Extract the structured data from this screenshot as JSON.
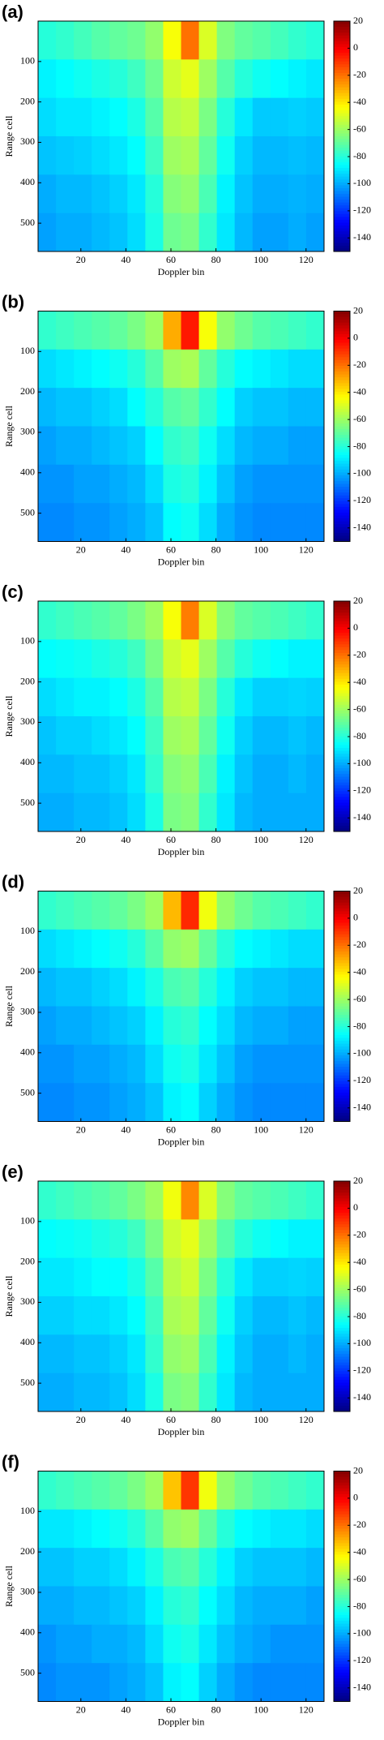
{
  "chart_data": [
    {
      "type": "heatmap",
      "panel_label": "(a)",
      "x_label": "Doppler bin",
      "y_label": "Range cell",
      "colormap": "jet",
      "y_reversed": true,
      "xlim": [
        1,
        128
      ],
      "ylim": [
        0,
        570
      ],
      "xticks": [
        20,
        40,
        60,
        80,
        100,
        120
      ],
      "yticks": [
        100,
        200,
        300,
        400,
        500
      ],
      "clim": [
        -150,
        20
      ],
      "cticks": [
        20,
        0,
        -20,
        -40,
        -60,
        -80,
        -100,
        -120,
        -140
      ],
      "values": [
        [
          -80,
          -78,
          -75,
          -72,
          -70,
          -68,
          -62,
          -45,
          -20,
          -50,
          -65,
          -70,
          -72,
          -75,
          -78,
          -80
        ],
        [
          -88,
          -86,
          -84,
          -82,
          -80,
          -76,
          -68,
          -52,
          -48,
          -60,
          -72,
          -80,
          -84,
          -86,
          -88,
          -90
        ],
        [
          -92,
          -90,
          -90,
          -88,
          -86,
          -82,
          -72,
          -56,
          -54,
          -66,
          -80,
          -90,
          -95,
          -95,
          -94,
          -95
        ],
        [
          -96,
          -95,
          -94,
          -92,
          -90,
          -86,
          -76,
          -60,
          -58,
          -70,
          -84,
          -94,
          -98,
          -98,
          -97,
          -98
        ],
        [
          -100,
          -98,
          -98,
          -96,
          -94,
          -90,
          -80,
          -64,
          -62,
          -74,
          -88,
          -96,
          -100,
          -100,
          -99,
          -100
        ],
        [
          -102,
          -100,
          -100,
          -98,
          -96,
          -92,
          -82,
          -68,
          -66,
          -78,
          -90,
          -98,
          -102,
          -102,
          -100,
          -102
        ]
      ]
    },
    {
      "type": "heatmap",
      "panel_label": "(b)",
      "x_label": "Doppler bin",
      "y_label": "Range cell",
      "colormap": "jet",
      "y_reversed": true,
      "xlim": [
        1,
        128
      ],
      "ylim": [
        0,
        570
      ],
      "xticks": [
        20,
        40,
        60,
        80,
        100,
        120
      ],
      "yticks": [
        100,
        200,
        300,
        400,
        500
      ],
      "clim": [
        -150,
        20
      ],
      "cticks": [
        20,
        0,
        -20,
        -40,
        -60,
        -80,
        -100,
        -120,
        -140
      ],
      "values": [
        [
          -78,
          -76,
          -74,
          -72,
          -70,
          -66,
          -60,
          -30,
          -5,
          -45,
          -62,
          -68,
          -72,
          -74,
          -76,
          -78
        ],
        [
          -92,
          -90,
          -88,
          -86,
          -84,
          -80,
          -72,
          -60,
          -58,
          -70,
          -80,
          -86,
          -88,
          -90,
          -92,
          -92
        ],
        [
          -98,
          -96,
          -96,
          -94,
          -92,
          -86,
          -80,
          -72,
          -70,
          -78,
          -86,
          -94,
          -96,
          -96,
          -98,
          -98
        ],
        [
          -102,
          -100,
          -100,
          -98,
          -96,
          -94,
          -86,
          -78,
          -76,
          -84,
          -92,
          -98,
          -100,
          -100,
          -102,
          -102
        ],
        [
          -104,
          -104,
          -102,
          -102,
          -100,
          -98,
          -92,
          -82,
          -80,
          -88,
          -96,
          -102,
          -104,
          -104,
          -104,
          -104
        ],
        [
          -106,
          -106,
          -104,
          -104,
          -102,
          -100,
          -96,
          -86,
          -84,
          -92,
          -100,
          -104,
          -106,
          -106,
          -106,
          -106
        ]
      ]
    },
    {
      "type": "heatmap",
      "panel_label": "(c)",
      "x_label": "Doppler bin",
      "y_label": "Range cell",
      "colormap": "jet",
      "y_reversed": true,
      "xlim": [
        1,
        128
      ],
      "ylim": [
        0,
        570
      ],
      "xticks": [
        20,
        40,
        60,
        80,
        100,
        120
      ],
      "yticks": [
        100,
        200,
        300,
        400,
        500
      ],
      "clim": [
        -150,
        20
      ],
      "cticks": [
        20,
        0,
        -20,
        -40,
        -60,
        -80,
        -100,
        -120,
        -140
      ],
      "values": [
        [
          -78,
          -76,
          -74,
          -72,
          -70,
          -66,
          -60,
          -45,
          -22,
          -50,
          -64,
          -70,
          -72,
          -74,
          -76,
          -78
        ],
        [
          -86,
          -85,
          -84,
          -82,
          -80,
          -76,
          -66,
          -52,
          -48,
          -60,
          -72,
          -80,
          -84,
          -86,
          -88,
          -88
        ],
        [
          -92,
          -90,
          -88,
          -88,
          -86,
          -82,
          -72,
          -56,
          -54,
          -66,
          -80,
          -90,
          -94,
          -94,
          -93,
          -94
        ],
        [
          -96,
          -94,
          -94,
          -92,
          -90,
          -86,
          -76,
          -60,
          -58,
          -70,
          -84,
          -94,
          -98,
          -98,
          -96,
          -98
        ],
        [
          -98,
          -98,
          -96,
          -96,
          -94,
          -90,
          -78,
          -64,
          -62,
          -74,
          -88,
          -96,
          -100,
          -100,
          -98,
          -100
        ],
        [
          -100,
          -100,
          -98,
          -98,
          -96,
          -92,
          -82,
          -66,
          -64,
          -78,
          -90,
          -98,
          -100,
          -100,
          -100,
          -100
        ]
      ]
    },
    {
      "type": "heatmap",
      "panel_label": "(d)",
      "x_label": "Doppler bin",
      "y_label": "Range cell",
      "colormap": "jet",
      "y_reversed": true,
      "xlim": [
        1,
        128
      ],
      "ylim": [
        0,
        570
      ],
      "xticks": [
        20,
        40,
        60,
        80,
        100,
        120
      ],
      "yticks": [
        100,
        200,
        300,
        400,
        500
      ],
      "clim": [
        -150,
        20
      ],
      "cticks": [
        20,
        0,
        -20,
        -40,
        -60,
        -80,
        -100,
        -120,
        -140
      ],
      "values": [
        [
          -78,
          -76,
          -74,
          -72,
          -70,
          -66,
          -60,
          -32,
          -8,
          -46,
          -62,
          -68,
          -72,
          -74,
          -76,
          -78
        ],
        [
          -92,
          -90,
          -88,
          -86,
          -84,
          -80,
          -72,
          -62,
          -60,
          -70,
          -80,
          -86,
          -88,
          -90,
          -92,
          -92
        ],
        [
          -98,
          -96,
          -96,
          -94,
          -92,
          -88,
          -82,
          -74,
          -72,
          -80,
          -88,
          -94,
          -96,
          -96,
          -98,
          -98
        ],
        [
          -102,
          -100,
          -100,
          -98,
          -96,
          -94,
          -88,
          -80,
          -78,
          -86,
          -92,
          -98,
          -100,
          -100,
          -102,
          -102
        ],
        [
          -104,
          -104,
          -102,
          -102,
          -100,
          -98,
          -92,
          -84,
          -82,
          -90,
          -96,
          -102,
          -104,
          -104,
          -104,
          -104
        ],
        [
          -106,
          -106,
          -104,
          -104,
          -102,
          -100,
          -96,
          -88,
          -86,
          -94,
          -100,
          -104,
          -106,
          -106,
          -106,
          -106
        ]
      ]
    },
    {
      "type": "heatmap",
      "panel_label": "(e)",
      "x_label": "Doppler bin",
      "y_label": "Range cell",
      "colormap": "jet",
      "y_reversed": true,
      "xlim": [
        1,
        128
      ],
      "ylim": [
        0,
        570
      ],
      "xticks": [
        20,
        40,
        60,
        80,
        100,
        120
      ],
      "yticks": [
        100,
        200,
        300,
        400,
        500
      ],
      "clim": [
        -150,
        20
      ],
      "cticks": [
        20,
        0,
        -20,
        -40,
        -60,
        -80,
        -100,
        -120,
        -140
      ],
      "values": [
        [
          -78,
          -76,
          -74,
          -72,
          -70,
          -66,
          -60,
          -46,
          -24,
          -50,
          -64,
          -70,
          -72,
          -74,
          -76,
          -78
        ],
        [
          -86,
          -85,
          -84,
          -82,
          -80,
          -76,
          -66,
          -52,
          -48,
          -60,
          -72,
          -80,
          -84,
          -86,
          -88,
          -88
        ],
        [
          -90,
          -90,
          -88,
          -86,
          -86,
          -82,
          -72,
          -56,
          -52,
          -66,
          -80,
          -90,
          -94,
          -94,
          -93,
          -94
        ],
        [
          -94,
          -94,
          -92,
          -92,
          -90,
          -86,
          -76,
          -58,
          -56,
          -70,
          -84,
          -94,
          -98,
          -98,
          -96,
          -98
        ],
        [
          -98,
          -98,
          -96,
          -96,
          -94,
          -90,
          -78,
          -62,
          -60,
          -74,
          -88,
          -96,
          -100,
          -100,
          -98,
          -100
        ],
        [
          -100,
          -100,
          -98,
          -98,
          -96,
          -92,
          -82,
          -66,
          -64,
          -78,
          -90,
          -98,
          -100,
          -100,
          -100,
          -100
        ]
      ]
    },
    {
      "type": "heatmap",
      "panel_label": "(f)",
      "x_label": "Doppler bin",
      "y_label": "Range cell",
      "colormap": "jet",
      "y_reversed": true,
      "xlim": [
        1,
        128
      ],
      "ylim": [
        0,
        570
      ],
      "xticks": [
        20,
        40,
        60,
        80,
        100,
        120
      ],
      "yticks": [
        100,
        200,
        300,
        400,
        500
      ],
      "clim": [
        -150,
        20
      ],
      "cticks": [
        20,
        0,
        -20,
        -40,
        -60,
        -80,
        -100,
        -120,
        -140
      ],
      "values": [
        [
          -78,
          -76,
          -74,
          -72,
          -70,
          -66,
          -60,
          -34,
          -10,
          -46,
          -62,
          -68,
          -72,
          -74,
          -76,
          -78
        ],
        [
          -90,
          -90,
          -88,
          -86,
          -84,
          -80,
          -72,
          -62,
          -60,
          -70,
          -80,
          -86,
          -88,
          -90,
          -90,
          -92
        ],
        [
          -96,
          -96,
          -94,
          -94,
          -92,
          -88,
          -82,
          -74,
          -72,
          -80,
          -88,
          -94,
          -96,
          -96,
          -96,
          -98
        ],
        [
          -100,
          -100,
          -98,
          -98,
          -96,
          -94,
          -88,
          -80,
          -78,
          -86,
          -92,
          -98,
          -100,
          -100,
          -100,
          -102
        ],
        [
          -104,
          -102,
          -102,
          -100,
          -100,
          -98,
          -92,
          -84,
          -82,
          -90,
          -96,
          -100,
          -102,
          -104,
          -104,
          -104
        ],
        [
          -106,
          -104,
          -104,
          -104,
          -102,
          -100,
          -96,
          -88,
          -86,
          -94,
          -100,
          -104,
          -106,
          -106,
          -106,
          -106
        ]
      ]
    }
  ]
}
